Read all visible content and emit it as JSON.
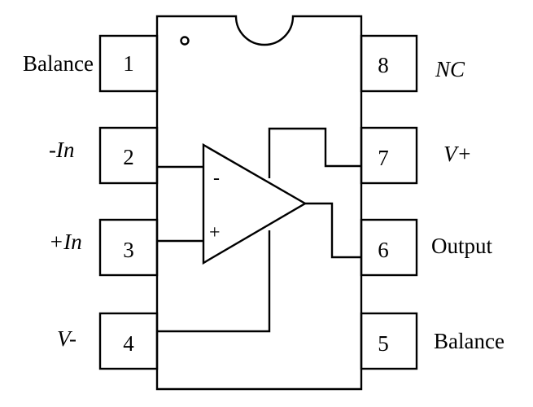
{
  "package": {
    "pins": [
      {
        "number": "1",
        "label": "Balance",
        "italic": false
      },
      {
        "number": "2",
        "label": "-In",
        "italic": true
      },
      {
        "number": "3",
        "label": "+In",
        "italic": true
      },
      {
        "number": "4",
        "label": "V-",
        "italic": true
      },
      {
        "number": "5",
        "label": "Balance",
        "italic": false
      },
      {
        "number": "6",
        "label": "Output",
        "italic": false
      },
      {
        "number": "7",
        "label": "V+",
        "italic": true
      },
      {
        "number": "8",
        "label": "NC",
        "italic": true
      }
    ]
  },
  "op_amp": {
    "inverting_sign": "-",
    "noninverting_sign": "+"
  }
}
